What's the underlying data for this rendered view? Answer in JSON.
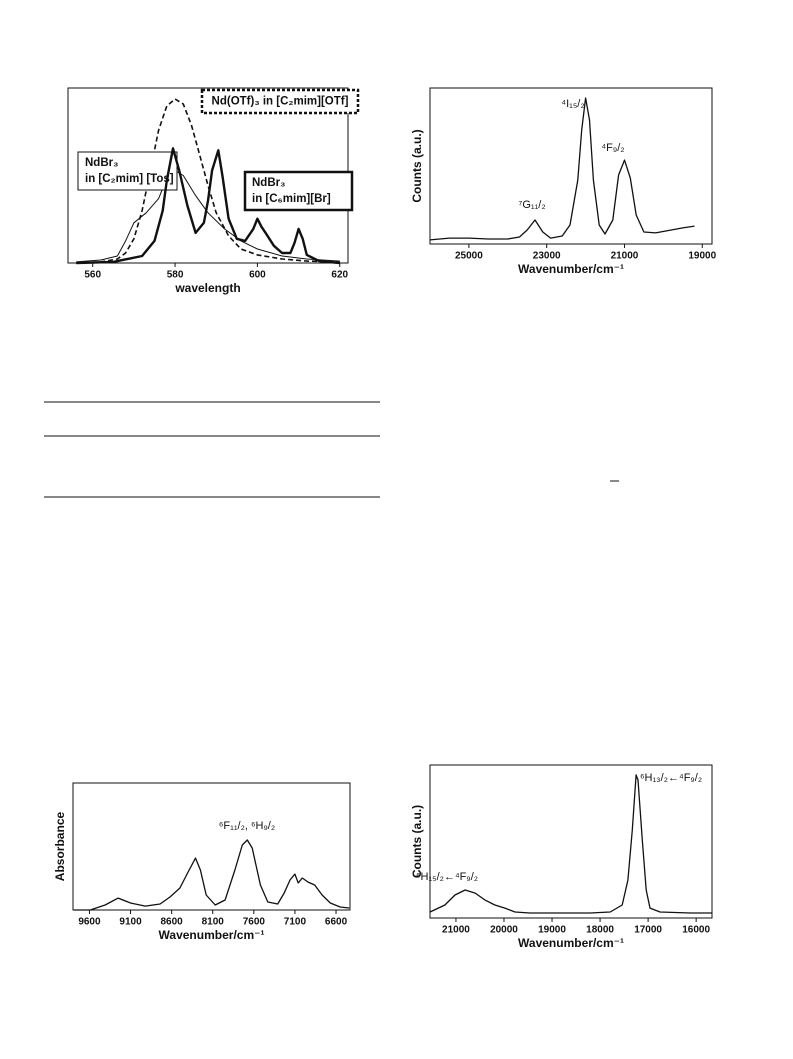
{
  "chart_data": [
    {
      "type": "line",
      "xlabel": "wavelength",
      "xlim": [
        554,
        622
      ],
      "ylim": [
        0,
        100
      ],
      "xticks": [
        560,
        580,
        600,
        620
      ],
      "series": [
        {
          "name": "Nd(OTf)₃ in [C₂mim][OTf]",
          "color": "#111111",
          "style": "dashed",
          "x": [
            556,
            562,
            566,
            568,
            570,
            572,
            574,
            576,
            578,
            580,
            582,
            584,
            586,
            588,
            590,
            593,
            596,
            600,
            606,
            612,
            620
          ],
          "values": [
            0,
            0.6,
            2.3,
            5.7,
            13.8,
            29.9,
            52.9,
            75.9,
            89.7,
            93.7,
            90.8,
            78.7,
            61.5,
            44.3,
            28.7,
            15.5,
            8.0,
            4.6,
            2.3,
            1.1,
            0.6
          ]
        },
        {
          "name": "NdBr₃ in [C₂mim] [Tos]",
          "color": "#111111",
          "style": "thin",
          "x": [
            556,
            562,
            566,
            568,
            570,
            573,
            576,
            578,
            580,
            582,
            585,
            588,
            592,
            596,
            600,
            606,
            612,
            620
          ],
          "values": [
            0.6,
            1.7,
            4.0,
            12.6,
            23.0,
            28.7,
            36.8,
            48.3,
            52.9,
            50.0,
            38.5,
            28.7,
            19.5,
            12.6,
            8.0,
            4.0,
            2.3,
            1.1
          ]
        },
        {
          "name": "NdBr₃ in [C₆mim][Br]",
          "color": "#111111",
          "style": "bold",
          "x": [
            556,
            565,
            572,
            575,
            577,
            578,
            579.5,
            581,
            583,
            585,
            587,
            588,
            589,
            590.5,
            591.5,
            593,
            595,
            597,
            599,
            600,
            601,
            602,
            604,
            606,
            608,
            609,
            610,
            611,
            612,
            615,
            620
          ],
          "values": [
            0,
            0.6,
            4.0,
            12.6,
            29.9,
            47.1,
            65.5,
            52.9,
            32.8,
            17.2,
            23.0,
            35.6,
            52.9,
            64.4,
            50.0,
            25.3,
            13.8,
            12.6,
            19.5,
            25.3,
            20.7,
            17.2,
            9.8,
            5.7,
            5.7,
            11.5,
            19.5,
            13.8,
            4.6,
            1.1,
            0
          ]
        }
      ]
    },
    {
      "type": "line",
      "xlabel": "Wavenumber/cm⁻¹",
      "ylabel": "Counts (a.u.)",
      "xlim": [
        26000,
        18750
      ],
      "ylim": [
        0,
        100
      ],
      "xticks": [
        25000,
        23000,
        21000,
        19000
      ],
      "annotations": [
        "⁷G₁₁/₂",
        "⁴I₁₅/₂",
        "⁴F₉/₂"
      ],
      "series": [
        {
          "color": "#111111",
          "style": "normal",
          "x": [
            26000,
            25500,
            25000,
            24500,
            24000,
            23700,
            23500,
            23300,
            23100,
            22900,
            22600,
            22400,
            22200,
            22100,
            22000,
            21900,
            21800,
            21650,
            21500,
            21300,
            21150,
            21000,
            20850,
            20700,
            20500,
            20200,
            19800,
            19500,
            19200
          ],
          "values": [
            2.6,
            3.8,
            3.8,
            3.2,
            3.2,
            4.5,
            9.0,
            15.4,
            7.7,
            3.8,
            5.1,
            12.2,
            41.0,
            73.1,
            93.6,
            79.5,
            41.0,
            12.2,
            6.4,
            15.4,
            44.2,
            53.8,
            42.3,
            18.6,
            7.7,
            7.1,
            9.0,
            10.3,
            11.5
          ]
        }
      ]
    },
    {
      "type": "line",
      "xlabel": "Wavenumber/cm⁻¹",
      "ylabel": "Absorbance",
      "xlim": [
        9800,
        6430
      ],
      "ylim": [
        0,
        100
      ],
      "xticks": [
        9600,
        9100,
        8600,
        8100,
        7600,
        7100,
        6600
      ],
      "annotations": [
        "⁶F₁₁/₂, ⁶H₉/₂"
      ],
      "series": [
        {
          "color": "#111111",
          "style": "normal",
          "x": [
            9790,
            9590,
            9410,
            9250,
            9100,
            8920,
            8740,
            8620,
            8500,
            8400,
            8310,
            8250,
            8180,
            8070,
            7950,
            7830,
            7740,
            7680,
            7620,
            7520,
            7430,
            7310,
            7230,
            7160,
            7100,
            7060,
            7010,
            6940,
            6860,
            6770,
            6670,
            6550,
            6440
          ],
          "values": [
            0,
            0,
            3.9,
            9.4,
            5.5,
            3.1,
            4.7,
            10.2,
            17.3,
            29.9,
            40.9,
            31.5,
            11.8,
            3.9,
            7.9,
            31.5,
            51.2,
            55.1,
            48.8,
            19.7,
            6.3,
            4.7,
            13.4,
            23.6,
            28.3,
            21.3,
            25.2,
            22.0,
            19.7,
            11.8,
            5.5,
            2.4,
            1.6
          ]
        }
      ]
    },
    {
      "type": "line",
      "xlabel": "Wavenumber/cm⁻¹",
      "ylabel": "Counts (a.u.)",
      "xlim": [
        21540,
        15670
      ],
      "ylim": [
        0,
        100
      ],
      "xticks": [
        21000,
        20000,
        19000,
        18000,
        17000,
        16000
      ],
      "annotations": [
        "⁶H₁₃/₂←⁴F₉/₂",
        "⁶H₁₅/₂←⁴F₉/₂"
      ],
      "series": [
        {
          "color": "#111111",
          "style": "normal",
          "x": [
            21540,
            21230,
            21020,
            20810,
            20600,
            20400,
            20190,
            19980,
            19770,
            19460,
            18830,
            18210,
            17790,
            17540,
            17420,
            17330,
            17250,
            17210,
            17120,
            17040,
            16960,
            16750,
            16120,
            15670
          ],
          "values": [
            3.9,
            8.5,
            15.0,
            18.3,
            16.3,
            11.8,
            8.5,
            6.5,
            3.9,
            3.3,
            3.3,
            3.3,
            3.9,
            8.5,
            24.8,
            57.5,
            93.5,
            90.2,
            51.0,
            18.3,
            6.5,
            3.9,
            3.3,
            3.3
          ]
        }
      ]
    }
  ]
}
